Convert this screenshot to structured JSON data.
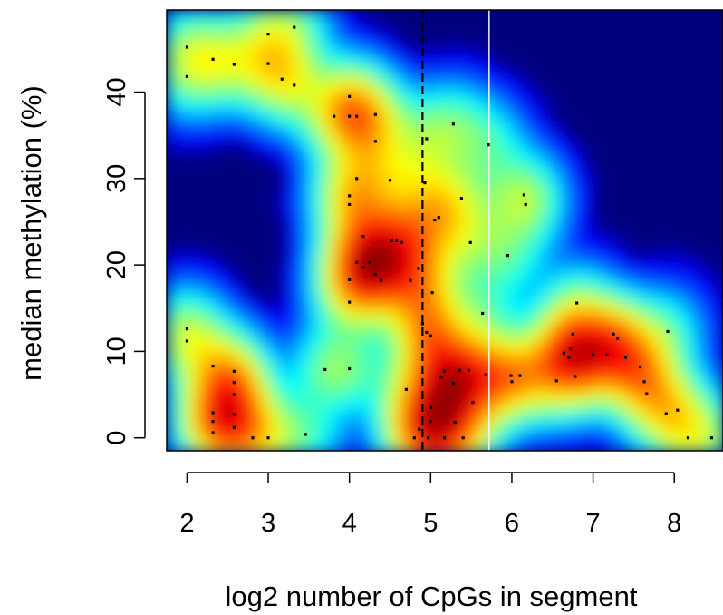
{
  "chart_data": {
    "type": "scatter",
    "subtype": "smoothed-density-scatter",
    "title": "",
    "xlabel": "log2 number of CpGs in segment",
    "ylabel": "median methylation (%)",
    "xlim": [
      1.75,
      8.6
    ],
    "ylim": [
      -1.5,
      49.5
    ],
    "x_ticks": [
      2,
      3,
      4,
      5,
      6,
      7,
      8
    ],
    "y_ticks": [
      0,
      10,
      20,
      30,
      40
    ],
    "x_tick_labels": [
      "2",
      "3",
      "4",
      "5",
      "6",
      "7",
      "8"
    ],
    "y_tick_labels": [
      "0",
      "10",
      "20",
      "30",
      "40"
    ],
    "grid": false,
    "legend": "none",
    "colormap": [
      "#00007F",
      "#0000FF",
      "#007FFF",
      "#00FFFF",
      "#7FFF7F",
      "#FFFF00",
      "#FF7F00",
      "#FF0000",
      "#7F0000"
    ],
    "vertical_lines": [
      {
        "x": 4.9,
        "style": "dashed",
        "color": "#000000"
      },
      {
        "x": 5.72,
        "style": "solid",
        "color": "#FFFFFF"
      }
    ],
    "points": [
      [
        2.0,
        45.2
      ],
      [
        2.0,
        41.8
      ],
      [
        2.0,
        12.6
      ],
      [
        2.0,
        11.2
      ],
      [
        2.32,
        43.8
      ],
      [
        2.32,
        8.3
      ],
      [
        2.32,
        2.9
      ],
      [
        2.32,
        1.9
      ],
      [
        2.32,
        0.6
      ],
      [
        2.58,
        43.2
      ],
      [
        2.58,
        7.7
      ],
      [
        2.58,
        6.4
      ],
      [
        2.58,
        5.0
      ],
      [
        2.58,
        2.7
      ],
      [
        2.58,
        1.2
      ],
      [
        2.81,
        0.0
      ],
      [
        3.0,
        46.7
      ],
      [
        3.0,
        43.3
      ],
      [
        3.0,
        0.0
      ],
      [
        3.17,
        41.5
      ],
      [
        3.32,
        47.5
      ],
      [
        3.32,
        40.8
      ],
      [
        3.46,
        0.4
      ],
      [
        3.7,
        7.9
      ],
      [
        3.81,
        37.2
      ],
      [
        4.0,
        39.5
      ],
      [
        4.0,
        37.2
      ],
      [
        4.0,
        28.0
      ],
      [
        4.0,
        27.0
      ],
      [
        4.0,
        18.3
      ],
      [
        4.0,
        15.7
      ],
      [
        4.0,
        8.0
      ],
      [
        4.09,
        37.2
      ],
      [
        4.09,
        30.0
      ],
      [
        4.09,
        20.3
      ],
      [
        4.17,
        23.3
      ],
      [
        4.17,
        19.7
      ],
      [
        4.25,
        20.3
      ],
      [
        4.32,
        37.4
      ],
      [
        4.32,
        34.3
      ],
      [
        4.32,
        18.9
      ],
      [
        4.39,
        18.2
      ],
      [
        4.5,
        29.8
      ],
      [
        4.52,
        22.8
      ],
      [
        4.58,
        22.8
      ],
      [
        4.64,
        22.6
      ],
      [
        4.7,
        5.6
      ],
      [
        4.75,
        18.2
      ],
      [
        4.8,
        0.0
      ],
      [
        4.85,
        19.6
      ],
      [
        4.86,
        1.0
      ],
      [
        4.9,
        13.2
      ],
      [
        4.93,
        29.5
      ],
      [
        4.95,
        34.6
      ],
      [
        4.95,
        12.2
      ],
      [
        4.97,
        0.0
      ],
      [
        5.0,
        11.8
      ],
      [
        5.0,
        3.5
      ],
      [
        5.0,
        1.9
      ],
      [
        5.02,
        16.8
      ],
      [
        5.05,
        25.2
      ],
      [
        5.1,
        25.5
      ],
      [
        5.13,
        7.0
      ],
      [
        5.17,
        7.7
      ],
      [
        5.17,
        0.0
      ],
      [
        5.28,
        36.3
      ],
      [
        5.28,
        6.3
      ],
      [
        5.3,
        1.8
      ],
      [
        5.36,
        7.8
      ],
      [
        5.38,
        27.7
      ],
      [
        5.4,
        0.0
      ],
      [
        5.47,
        7.8
      ],
      [
        5.49,
        22.6
      ],
      [
        5.52,
        4.1
      ],
      [
        5.64,
        14.4
      ],
      [
        5.68,
        7.3
      ],
      [
        5.71,
        33.9
      ],
      [
        5.95,
        21.1
      ],
      [
        5.99,
        7.2
      ],
      [
        6.0,
        6.5
      ],
      [
        6.1,
        7.2
      ],
      [
        6.15,
        28.1
      ],
      [
        6.17,
        27.0
      ],
      [
        6.55,
        6.6
      ],
      [
        6.64,
        9.8
      ],
      [
        6.7,
        9.3
      ],
      [
        6.72,
        10.3
      ],
      [
        6.75,
        12.0
      ],
      [
        6.78,
        7.1
      ],
      [
        6.8,
        15.6
      ],
      [
        7.0,
        9.6
      ],
      [
        7.17,
        9.6
      ],
      [
        7.25,
        12.0
      ],
      [
        7.3,
        11.5
      ],
      [
        7.4,
        9.3
      ],
      [
        7.58,
        8.2
      ],
      [
        7.63,
        6.5
      ],
      [
        7.66,
        5.1
      ],
      [
        7.9,
        2.8
      ],
      [
        7.92,
        12.3
      ],
      [
        8.04,
        3.2
      ],
      [
        8.17,
        0.0
      ],
      [
        8.46,
        0.0
      ]
    ]
  }
}
